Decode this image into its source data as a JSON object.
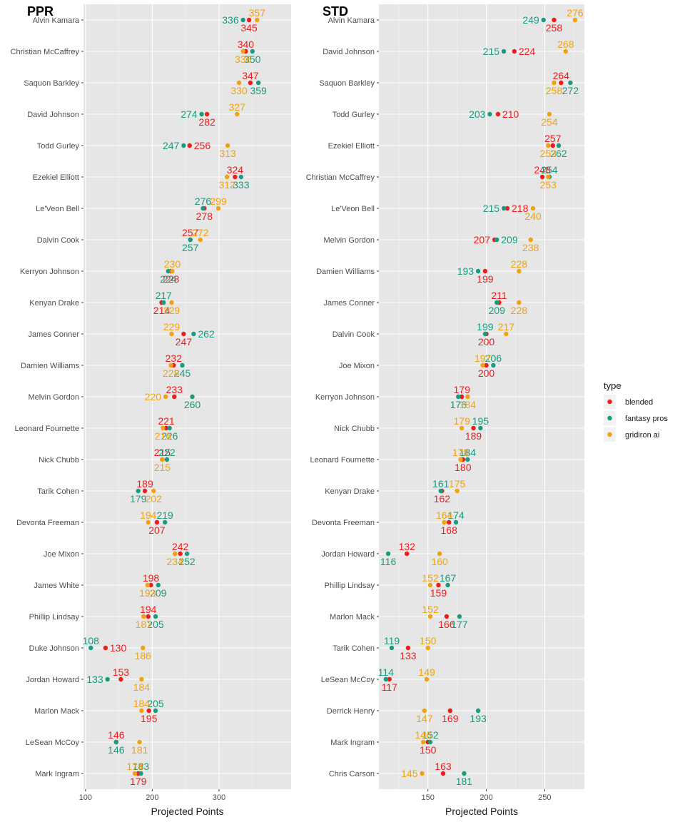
{
  "chart_data": [
    {
      "type": "scatter",
      "title": "PPR",
      "xlabel": "Projected Points",
      "xlim": [
        97,
        408
      ],
      "xticks": [
        100,
        200,
        300
      ],
      "grid": true,
      "players": [
        "Alvin Kamara",
        "Christian McCaffrey",
        "Saquon Barkley",
        "David Johnson",
        "Todd Gurley",
        "Ezekiel Elliott",
        "Le'Veon Bell",
        "Dalvin Cook",
        "Kerryon Johnson",
        "Kenyan Drake",
        "James Conner",
        "Damien Williams",
        "Melvin Gordon",
        "Leonard Fournette",
        "Nick Chubb",
        "Tarik Cohen",
        "Devonta Freeman",
        "Joe Mixon",
        "James White",
        "Phillip Lindsay",
        "Duke Johnson",
        "Jordan Howard",
        "Marlon Mack",
        "LeSean McCoy",
        "Mark Ingram"
      ],
      "series": [
        {
          "name": "blended",
          "values": [
            345,
            340,
            347,
            282,
            256,
            324,
            278,
            257,
            228,
            214,
            247,
            232,
            233,
            221,
            215,
            189,
            207,
            242,
            198,
            194,
            130,
            153,
            195,
            146,
            179
          ]
        },
        {
          "name": "fantasy pros",
          "values": [
            336,
            350,
            359,
            274,
            247,
            333,
            276,
            257,
            224,
            217,
            262,
            245,
            260,
            226,
            222,
            179,
            219,
            252,
            209,
            205,
            108,
            133,
            205,
            146,
            183
          ]
        },
        {
          "name": "gridiron ai",
          "values": [
            357,
            336,
            330,
            327,
            313,
            312,
            299,
            272,
            230,
            229,
            229,
            228,
            220,
            216,
            215,
            202,
            194,
            234,
            193,
            187,
            186,
            184,
            184,
            181,
            174
          ]
        }
      ],
      "label_positions": {
        "blended": [
          "below",
          "above",
          "above",
          "below",
          "right",
          "above",
          "below",
          "above",
          "below",
          "below",
          "below",
          "above",
          "above",
          "above",
          "above",
          "above",
          "below",
          "above",
          "above",
          "above",
          "right",
          "above",
          "below",
          "above",
          "below"
        ],
        "fantasy pros": [
          "left",
          "below",
          "below",
          "left",
          "left",
          "below",
          "above",
          "below",
          "below",
          "above",
          "right",
          "below",
          "below",
          "below",
          "above",
          "below",
          "above",
          "below",
          "below",
          "below",
          "above",
          "left",
          "above",
          "below",
          "above"
        ],
        "gridiron ai": [
          "above",
          "below",
          "below",
          "above",
          "below",
          "below",
          "above",
          "above",
          "above",
          "below",
          "above",
          "below",
          "left",
          "below",
          "below",
          "below",
          "above",
          "below",
          "below",
          "below",
          "below",
          "below",
          "above",
          "below",
          "above"
        ]
      }
    },
    {
      "type": "scatter",
      "title": "STD",
      "xlabel": "Projected Points",
      "xlim": [
        108,
        284
      ],
      "xticks": [
        150,
        200,
        250
      ],
      "grid": true,
      "players": [
        "Alvin Kamara",
        "David Johnson",
        "Saquon Barkley",
        "Todd Gurley",
        "Ezekiel Elliott",
        "Christian McCaffrey",
        "Le'Veon Bell",
        "Melvin Gordon",
        "Damien Williams",
        "James Conner",
        "Dalvin Cook",
        "Joe Mixon",
        "Kerryon Johnson",
        "Nick Chubb",
        "Leonard Fournette",
        "Kenyan Drake",
        "Devonta Freeman",
        "Jordan Howard",
        "Phillip Lindsay",
        "Marlon Mack",
        "Tarik Cohen",
        "LeSean McCoy",
        "Derrick Henry",
        "Mark Ingram",
        "Chris Carson"
      ],
      "series": [
        {
          "name": "blended",
          "values": [
            258,
            224,
            264,
            210,
            257,
            248,
            218,
            207,
            199,
            211,
            200,
            200,
            179,
            189,
            180,
            162,
            168,
            132,
            159,
            166,
            133,
            117,
            169,
            150,
            163
          ]
        },
        {
          "name": "fantasy pros",
          "values": [
            249,
            215,
            272,
            203,
            262,
            254,
            215,
            209,
            193,
            209,
            199,
            206,
            176,
            195,
            184,
            161,
            174,
            116,
            167,
            177,
            119,
            114,
            193,
            152,
            181
          ]
        },
        {
          "name": "gridiron ai",
          "values": [
            276,
            268,
            258,
            254,
            253,
            253,
            240,
            238,
            228,
            228,
            217,
            197,
            184,
            179,
            178,
            175,
            164,
            160,
            152,
            152,
            150,
            149,
            147,
            146,
            145
          ]
        }
      ],
      "label_positions": {
        "blended": [
          "below",
          "right",
          "above",
          "right",
          "above",
          "above",
          "right",
          "left",
          "below",
          "above",
          "below",
          "below",
          "above",
          "below",
          "below",
          "below",
          "below",
          "above",
          "below",
          "below",
          "below",
          "below",
          "below",
          "below",
          "above"
        ],
        "fantasy pros": [
          "left",
          "left",
          "below",
          "left",
          "below",
          "above",
          "left",
          "right",
          "left",
          "below",
          "above",
          "above",
          "below",
          "above",
          "above",
          "above",
          "above",
          "below",
          "above",
          "below",
          "above",
          "above",
          "below",
          "above",
          "below"
        ],
        "gridiron ai": [
          "above",
          "above",
          "below",
          "below",
          "below",
          "below",
          "below",
          "below",
          "above",
          "below",
          "above",
          "above",
          "below",
          "above",
          "above",
          "above",
          "above",
          "below",
          "above",
          "above",
          "above",
          "above",
          "below",
          "above",
          "left"
        ]
      }
    }
  ],
  "legend": {
    "title": "type",
    "placement": "right",
    "items": [
      {
        "label": "blended",
        "color": "#ee1c1c"
      },
      {
        "label": "fantasy pros",
        "color": "#1a9a7f"
      },
      {
        "label": "gridiron ai",
        "color": "#f0a30f"
      }
    ]
  },
  "colors": {
    "panel_bg": "#e6e6e6",
    "grid_major": "#ffffff",
    "grid_minor": "#f2f2f2"
  }
}
